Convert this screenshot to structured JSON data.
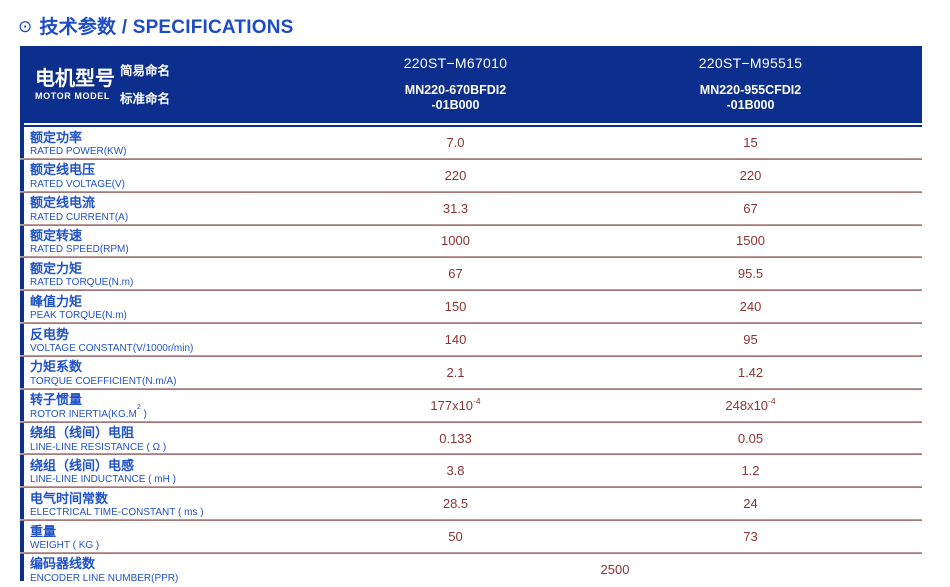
{
  "theme": {
    "header_bg": "#0c2e8c",
    "accent_blue": "#1d4cc6",
    "label_blue": "#2153c8",
    "value_maroon": "#8c3434",
    "separator": "#9a6868"
  },
  "title": {
    "icon": "circled-dot",
    "icon_glyph": "⊙",
    "text": "技术参数 / SPECIFICATIONS"
  },
  "header": {
    "motor_model_cn": "电机型号",
    "motor_model_en": "MOTOR MODEL",
    "simple_name_label": "简易命名",
    "standard_name_label": "标准命名",
    "columns": [
      {
        "simple_name": "220ST−M67010",
        "standard_name_line1": "MN220-670BFDI2",
        "standard_name_line2": "-01B000"
      },
      {
        "simple_name": "220ST−M95515",
        "standard_name_line1": "MN220-955CFDI2",
        "standard_name_line2": "-01B000"
      }
    ]
  },
  "rows": [
    {
      "cn": "额定功率",
      "en": "RATED POWER(KW)",
      "v1": "7.0",
      "v2": "15"
    },
    {
      "cn": "额定线电压",
      "en": "RATED VOLTAGE(V)",
      "v1": "220",
      "v2": "220"
    },
    {
      "cn": "额定线电流",
      "en": "RATED CURRENT(A)",
      "v1": "31.3",
      "v2": "67"
    },
    {
      "cn": "额定转速",
      "en": "RATED SPEED(RPM)",
      "v1": "1000",
      "v2": "1500"
    },
    {
      "cn": "额定力矩",
      "en": "RATED TORQUE(N.m)",
      "v1": "67",
      "v2": "95.5"
    },
    {
      "cn": "峰值力矩",
      "en": "PEAK TORQUE(N.m)",
      "v1": "150",
      "v2": "240"
    },
    {
      "cn": "反电势",
      "en": "VOLTAGE CONSTANT(V/1000r/min)",
      "v1": "140",
      "v2": "95"
    },
    {
      "cn": "力矩系数",
      "en": "TORQUE COEFFICIENT(N.m/A)",
      "v1": "2.1",
      "v2": "1.42"
    },
    {
      "cn": "转子惯量",
      "en_pre": "ROTOR INERTIA(KG.M",
      "en_sup": "2",
      "en_post": " )",
      "v1_base": "177x10",
      "v1_sup": "-4",
      "v2_base": "248x10 ",
      "v2_sup": "-4"
    },
    {
      "cn": "绕组（线间）电阻",
      "en": "LINE-LINE RESISTANCE ( Ω )",
      "v1": "0.133",
      "v2": "0.05"
    },
    {
      "cn": "绕组（线间）电感",
      "en": "LINE-LINE INDUCTANCE ( mH )",
      "v1": "3.8",
      "v2": "1.2"
    },
    {
      "cn": "电气时间常数",
      "en": "ELECTRICAL TIME-CONSTANT ( ms )",
      "v1": "28.5",
      "v2": "24"
    },
    {
      "cn": "重量",
      "en": "WEIGHT ( KG )",
      "v1": "50",
      "v2": "73"
    },
    {
      "cn": "编码器线数",
      "en": "ENCODER LINE NUMBER(PPR)",
      "v_span": "2500"
    }
  ]
}
